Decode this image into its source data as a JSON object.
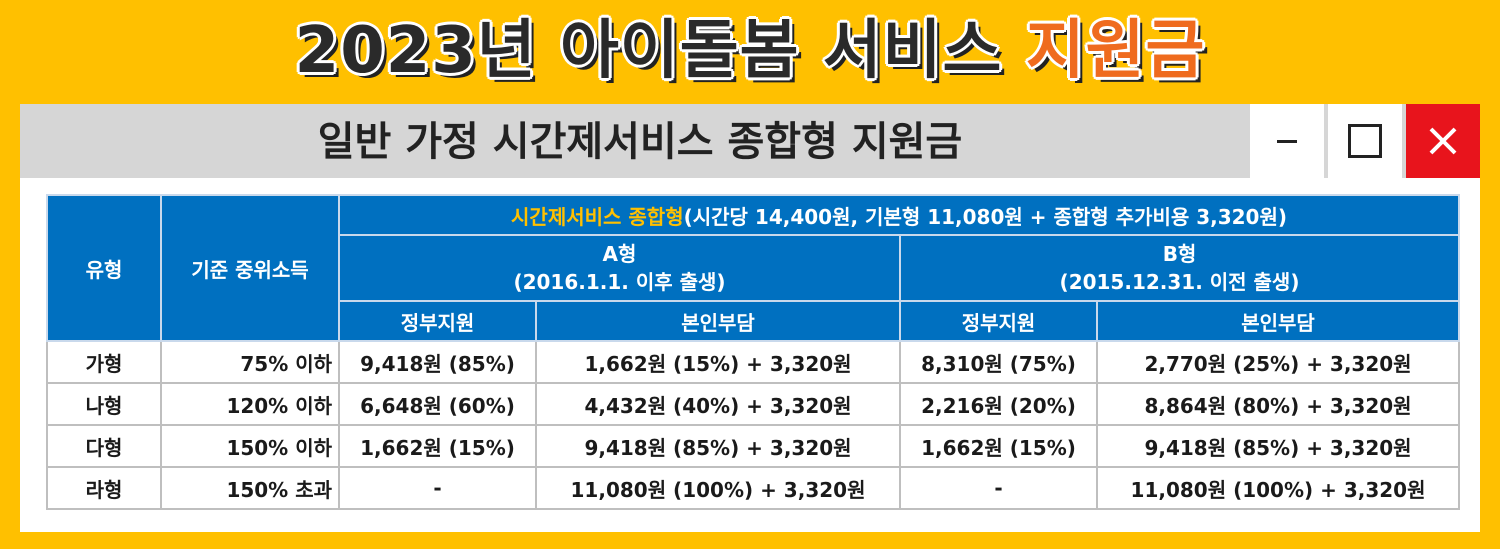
{
  "banner": {
    "title_main": "2023년 아이돌봄 서비스",
    "title_accent": "지원금",
    "accent_color": "#EF6B1E",
    "background_color": "#FFC000"
  },
  "window": {
    "title": "일반 가정 시간제서비스 종합형 지원금",
    "buttons": {
      "minimize": "minimize-icon",
      "maximize": "maximize-icon",
      "close": "close-icon"
    },
    "close_color": "#E8141C"
  },
  "table": {
    "header_color": "#0070C0",
    "col_type": "유형",
    "col_income": "기준 중위소득",
    "group_title_highlight": "시간제서비스 종합형",
    "group_title_rest": "(시간당 14,400원, 기본형 11,080원 + 종합형 추가비용 3,320원)",
    "type_a_name": "A형",
    "type_a_desc": "(2016.1.1. 이후 출생)",
    "type_b_name": "B형",
    "type_b_desc": "(2015.12.31. 이전 출생)",
    "gov_support": "정부지원",
    "self_pay": "본인부담",
    "rows": [
      {
        "type": "가형",
        "income": "75% 이하",
        "a_gov": "9,418원 (85%)",
        "a_self": "1,662원 (15%) + 3,320원",
        "b_gov": "8,310원 (75%)",
        "b_self": "2,770원 (25%) + 3,320원"
      },
      {
        "type": "나형",
        "income": "120% 이하",
        "a_gov": "6,648원 (60%)",
        "a_self": "4,432원 (40%) + 3,320원",
        "b_gov": "2,216원 (20%)",
        "b_self": "8,864원 (80%) + 3,320원"
      },
      {
        "type": "다형",
        "income": "150% 이하",
        "a_gov": "1,662원 (15%)",
        "a_self": "9,418원 (85%) + 3,320원",
        "b_gov": "1,662원 (15%)",
        "b_self": "9,418원 (85%) + 3,320원"
      },
      {
        "type": "라형",
        "income": "150% 초과",
        "a_gov": "-",
        "a_self": "11,080원 (100%) + 3,320원",
        "b_gov": "-",
        "b_self": "11,080원 (100%) + 3,320원"
      }
    ]
  }
}
